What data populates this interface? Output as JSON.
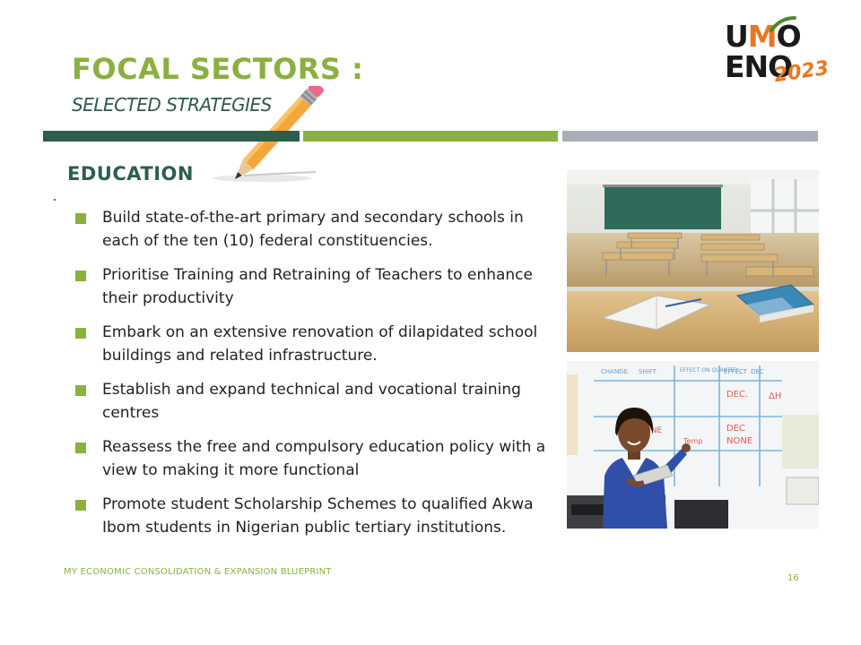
{
  "header": {
    "title": "FOCAL SECTORS :",
    "subtitle": "SELECTED STRATEGIES"
  },
  "logo": {
    "line1_a": "U",
    "line1_m": "M",
    "line1_b": "O",
    "line2": "ENO",
    "year": "2023",
    "accent_color": "#e87722"
  },
  "section": {
    "heading": "EDUCATION"
  },
  "bullets": [
    "Build state-of-the-art primary and secondary schools in each of the ten (10) federal constituencies.",
    "Prioritise Training and Retraining of Teachers to enhance their productivity",
    "Embark on an extensive renovation of dilapidated school buildings and related infrastructure.",
    "Establish and expand technical and vocational training centres",
    "Reassess the free and compulsory education policy with a view to making it more functional",
    "Promote student Scholarship Schemes to qualified Akwa Ibom students in Nigerian public tertiary institutions."
  ],
  "whiteboard": {
    "col1": "CHANGE",
    "col2": "SHIFT",
    "col3": "EFFECT ON QUANTITY",
    "col4": "EFFECT",
    "col5": "DEC",
    "cell1": "DEC.",
    "cell2": "DEC",
    "cell3": "NONE",
    "cell4": "NONE",
    "cell5": "Temp",
    "cell6": "ΔH"
  },
  "footer": {
    "text": "MY ECONOMIC CONSOLIDATION & EXPANSION  BLUEPRINT",
    "page": "16"
  },
  "colors": {
    "green": "#8ab040",
    "dark_green": "#2e5e4b",
    "grey": "#a9adb6"
  }
}
